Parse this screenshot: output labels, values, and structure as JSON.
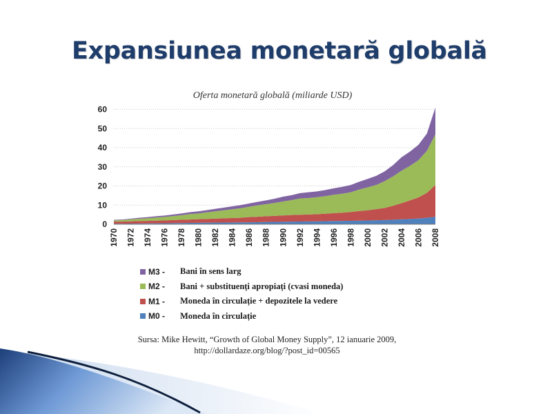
{
  "slide": {
    "title": "Expansiunea monetară globală"
  },
  "chart_data": {
    "type": "area",
    "title": "Oferta monetară globală (miliarde USD)",
    "stacked": true,
    "x": [
      1970,
      1971,
      1972,
      1973,
      1974,
      1975,
      1976,
      1977,
      1978,
      1979,
      1980,
      1981,
      1982,
      1983,
      1984,
      1985,
      1986,
      1987,
      1988,
      1989,
      1990,
      1991,
      1992,
      1993,
      1994,
      1995,
      1996,
      1997,
      1998,
      1999,
      2000,
      2001,
      2002,
      2003,
      2004,
      2005,
      2006,
      2007,
      2008
    ],
    "x_ticks": [
      "1970",
      "1972",
      "1974",
      "1976",
      "1978",
      "1980",
      "1982",
      "1984",
      "1986",
      "1988",
      "1990",
      "1992",
      "1994",
      "1996",
      "1998",
      "2000",
      "2002",
      "2004",
      "2006",
      "2008"
    ],
    "y_ticks": [
      "0",
      "10",
      "20",
      "30",
      "40",
      "50",
      "60"
    ],
    "ylim": [
      0,
      62
    ],
    "grid": true,
    "series": [
      {
        "name": "M0",
        "color": "#4f81bd",
        "values": [
          0.3,
          0.3,
          0.35,
          0.4,
          0.45,
          0.5,
          0.55,
          0.6,
          0.65,
          0.7,
          0.75,
          0.8,
          0.85,
          0.9,
          0.95,
          1.0,
          1.05,
          1.1,
          1.2,
          1.25,
          1.3,
          1.4,
          1.45,
          1.5,
          1.55,
          1.6,
          1.7,
          1.75,
          1.8,
          1.9,
          2.0,
          2.1,
          2.2,
          2.4,
          2.6,
          2.8,
          3.0,
          3.4,
          3.9
        ]
      },
      {
        "name": "M1",
        "color": "#c0504d",
        "values": [
          1.1,
          1.1,
          1.2,
          1.3,
          1.3,
          1.4,
          1.5,
          1.6,
          1.7,
          1.8,
          1.9,
          2.0,
          2.1,
          2.2,
          2.3,
          2.4,
          2.7,
          2.8,
          3.0,
          3.1,
          3.3,
          3.4,
          3.5,
          3.6,
          3.7,
          3.9,
          4.1,
          4.3,
          4.6,
          5.0,
          5.3,
          5.8,
          6.3,
          7.3,
          8.4,
          9.7,
          11.0,
          13.0,
          16.6
        ]
      },
      {
        "name": "M2",
        "color": "#9bbb59",
        "values": [
          0.6,
          0.8,
          1.0,
          1.2,
          1.4,
          1.6,
          1.8,
          2.1,
          2.4,
          2.8,
          3.0,
          3.4,
          3.8,
          4.2,
          4.6,
          5.0,
          5.4,
          6.0,
          6.3,
          6.8,
          7.3,
          7.8,
          8.5,
          8.6,
          8.9,
          9.2,
          9.6,
          9.9,
          10.3,
          11.2,
          12.0,
          12.6,
          14.0,
          15.3,
          17.0,
          18.0,
          19.5,
          22.0,
          26.5
        ]
      },
      {
        "name": "M3",
        "color": "#8064a2",
        "values": [
          0.3,
          0.3,
          0.4,
          0.5,
          0.6,
          0.7,
          0.7,
          0.8,
          0.9,
          1.0,
          1.1,
          1.2,
          1.3,
          1.4,
          1.5,
          1.6,
          1.7,
          1.8,
          2.0,
          2.2,
          2.5,
          2.6,
          2.8,
          3.0,
          3.0,
          3.2,
          3.4,
          3.6,
          3.8,
          4.1,
          4.4,
          4.8,
          5.1,
          5.9,
          7.0,
          7.5,
          8.0,
          9.0,
          14.0
        ]
      }
    ],
    "legend": [
      {
        "code": "M3 -",
        "label": "Bani în sens larg",
        "color": "#8064a2"
      },
      {
        "code": "M2 -",
        "label": "Bani + substituenți apropiați (cvasi moneda)",
        "color": "#9bbb59"
      },
      {
        "code": "M1 -",
        "label": "Moneda în circulație + depozitele la vedere",
        "color": "#c0504d"
      },
      {
        "code": "M0 -",
        "label": "Moneda în circulație",
        "color": "#4f81bd"
      }
    ],
    "legend_position": "bottom"
  },
  "source": {
    "line1": "Sursa: Mike Hewitt, “Growth of Global Money Supply”, 12 ianuarie 2009,",
    "line2": "http://dollardaze.org/blog/?post_id=00565"
  }
}
